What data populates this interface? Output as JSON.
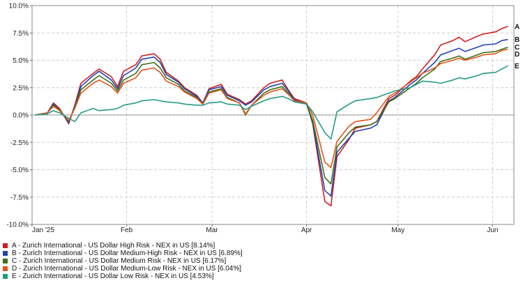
{
  "chart_data": {
    "type": "line",
    "title": "",
    "xlabel": "",
    "ylabel": "",
    "ylim": [
      -10,
      10
    ],
    "y_ticks": [
      10,
      7.5,
      5,
      2.5,
      0,
      -2.5,
      -5,
      -7.5,
      -10
    ],
    "y_tick_labels": [
      "10.0%",
      "7.5%",
      "5.0%",
      "2.5%",
      "0.0%",
      "-2.5%",
      "-5.0%",
      "-7.5%",
      "-10.0%"
    ],
    "x_range": [
      "2025-01-01",
      "2025-06-08"
    ],
    "x_ticks": [
      {
        "label": "Jan '25",
        "date": "2025-01-01"
      },
      {
        "label": "Feb",
        "date": "2025-02-01"
      },
      {
        "label": "Mar",
        "date": "2025-03-01"
      },
      {
        "label": "Apr",
        "date": "2025-04-01"
      },
      {
        "label": "May",
        "date": "2025-05-01"
      },
      {
        "label": "Jun",
        "date": "2025-06-01"
      }
    ],
    "grid": true,
    "zero_line": true,
    "legend_position": "bottom",
    "x": [
      "2025-01-02",
      "2025-01-06",
      "2025-01-08",
      "2025-01-10",
      "2025-01-13",
      "2025-01-15",
      "2025-01-17",
      "2025-01-21",
      "2025-01-23",
      "2025-01-27",
      "2025-01-29",
      "2025-01-31",
      "2025-02-04",
      "2025-02-06",
      "2025-02-10",
      "2025-02-12",
      "2025-02-14",
      "2025-02-18",
      "2025-02-20",
      "2025-02-24",
      "2025-02-26",
      "2025-02-28",
      "2025-03-04",
      "2025-03-06",
      "2025-03-10",
      "2025-03-12",
      "2025-03-14",
      "2025-03-18",
      "2025-03-20",
      "2025-03-24",
      "2025-03-26",
      "2025-03-28",
      "2025-04-01",
      "2025-04-03",
      "2025-04-07",
      "2025-04-09",
      "2025-04-11",
      "2025-04-15",
      "2025-04-17",
      "2025-04-22",
      "2025-04-24",
      "2025-04-28",
      "2025-04-30",
      "2025-05-05",
      "2025-05-07",
      "2025-05-09",
      "2025-05-13",
      "2025-05-15",
      "2025-05-19",
      "2025-05-21",
      "2025-05-23",
      "2025-05-27",
      "2025-05-29",
      "2025-06-02",
      "2025-06-04",
      "2025-06-06"
    ],
    "series": [
      {
        "name": "A - Zurich International - US Dollar High Risk - NEX in US [8.14%]",
        "end_label": "A",
        "color": "#cc1f1f",
        "values": [
          0.0,
          0.2,
          1.1,
          0.6,
          -0.8,
          0.9,
          2.9,
          3.8,
          4.2,
          3.5,
          2.6,
          4.0,
          4.6,
          5.4,
          5.6,
          5.1,
          3.9,
          3.1,
          2.5,
          1.8,
          1.1,
          2.4,
          2.8,
          1.9,
          1.4,
          1.0,
          1.3,
          2.5,
          2.9,
          3.2,
          2.3,
          1.5,
          1.1,
          -0.8,
          -7.9,
          -8.3,
          -3.8,
          -2.2,
          -1.2,
          -0.9,
          -0.6,
          1.5,
          1.8,
          3.1,
          3.5,
          4.2,
          5.5,
          6.4,
          6.8,
          7.1,
          6.7,
          7.2,
          7.4,
          7.6,
          7.9,
          8.1
        ]
      },
      {
        "name": "B - Zurich International - US Dollar Medium-High Risk - NEX in US [6.89%]",
        "end_label": "B",
        "color": "#2442b5",
        "values": [
          0.0,
          0.2,
          1.0,
          0.5,
          -0.7,
          0.8,
          2.6,
          3.6,
          4.0,
          3.2,
          2.4,
          3.6,
          4.3,
          5.1,
          5.3,
          4.8,
          3.7,
          3.0,
          2.4,
          1.7,
          1.1,
          2.3,
          2.6,
          1.8,
          1.3,
          0.9,
          1.2,
          2.3,
          2.6,
          2.9,
          2.2,
          1.4,
          1.0,
          -0.7,
          -6.9,
          -7.4,
          -3.4,
          -2.1,
          -1.5,
          -1.2,
          -0.9,
          1.3,
          1.6,
          2.8,
          3.2,
          3.8,
          4.8,
          5.5,
          5.9,
          6.1,
          5.8,
          6.2,
          6.4,
          6.5,
          6.8,
          6.9
        ]
      },
      {
        "name": "C - Zurich International - US Dollar Medium Risk - NEX in US [6.17%]",
        "end_label": "C",
        "color": "#3e6f14",
        "values": [
          0.0,
          0.2,
          0.9,
          0.5,
          -0.6,
          0.7,
          2.3,
          3.2,
          3.6,
          2.9,
          2.2,
          3.2,
          3.8,
          4.6,
          4.8,
          4.3,
          3.4,
          2.8,
          2.2,
          1.6,
          1.0,
          2.1,
          2.4,
          1.6,
          1.1,
          0.0,
          0.9,
          2.0,
          2.3,
          2.6,
          2.0,
          1.3,
          1.0,
          -0.5,
          -5.7,
          -6.3,
          -2.9,
          -1.6,
          -1.1,
          -0.9,
          -0.6,
          1.2,
          1.5,
          2.5,
          2.9,
          3.4,
          4.2,
          4.9,
          5.2,
          5.4,
          5.1,
          5.5,
          5.7,
          5.8,
          6.0,
          6.2
        ]
      },
      {
        "name": "D - Zurich International - US Dollar Medium-Low Risk - NEX in US [6.04%]",
        "end_label": "D",
        "color": "#e2531c",
        "values": [
          0.0,
          0.2,
          0.8,
          0.4,
          -0.5,
          0.6,
          2.0,
          2.9,
          3.2,
          2.6,
          2.0,
          2.9,
          3.4,
          4.1,
          4.3,
          3.9,
          3.1,
          2.6,
          2.1,
          1.5,
          1.0,
          2.0,
          2.3,
          1.5,
          1.1,
          0.1,
          0.9,
          1.8,
          2.1,
          2.4,
          1.9,
          1.3,
          1.1,
          0.0,
          -4.3,
          -4.8,
          -2.4,
          -1.0,
          -0.6,
          -0.4,
          0.2,
          1.7,
          2.0,
          3.0,
          3.4,
          3.8,
          4.3,
          4.7,
          5.0,
          5.2,
          5.0,
          5.3,
          5.5,
          5.6,
          5.9,
          6.0
        ]
      },
      {
        "name": "E - Zurich International - US Dollar Low Risk - NEX in US [4.53%]",
        "end_label": "E",
        "color": "#239a86",
        "values": [
          0.0,
          0.1,
          0.4,
          0.2,
          -0.3,
          -0.6,
          0.2,
          0.6,
          0.4,
          0.5,
          0.6,
          0.9,
          1.1,
          1.3,
          1.4,
          1.3,
          1.2,
          1.1,
          1.0,
          0.9,
          0.9,
          1.1,
          1.2,
          1.0,
          0.9,
          0.5,
          0.8,
          1.3,
          1.5,
          1.7,
          1.5,
          1.2,
          1.0,
          0.3,
          -1.6,
          -2.2,
          0.3,
          1.0,
          1.3,
          1.5,
          1.6,
          2.0,
          2.2,
          2.5,
          2.8,
          3.1,
          3.0,
          2.9,
          3.2,
          3.4,
          3.3,
          3.6,
          3.8,
          3.9,
          4.2,
          4.5
        ]
      }
    ]
  }
}
